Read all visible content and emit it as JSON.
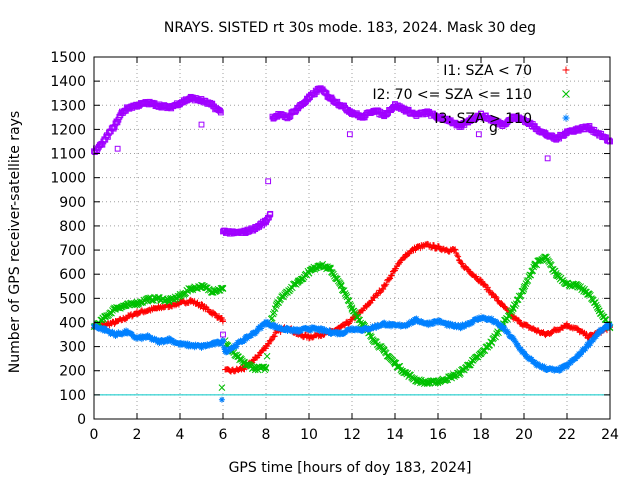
{
  "chart_data": {
    "type": "scatter",
    "title": "NRAYS. SISTED rt 30s mode. 183, 2024. Mask 30 deg",
    "xlabel": "GPS time [hours of doy 183, 2024]",
    "ylabel": "Number of GPS receiver-satellite rays",
    "xlim": [
      0,
      24
    ],
    "ylim": [
      0,
      1500
    ],
    "xticks": [
      0,
      2,
      4,
      6,
      8,
      10,
      12,
      14,
      16,
      18,
      20,
      22,
      24
    ],
    "yticks": [
      0,
      100,
      200,
      300,
      400,
      500,
      600,
      700,
      800,
      900,
      1000,
      1100,
      1200,
      1300,
      1400,
      1500
    ],
    "grid": true,
    "legend_position": "top-right",
    "reference_line": {
      "y": 100,
      "color": "#00c8c8"
    },
    "series": [
      {
        "name": "I1: SZA < 70",
        "marker": "+",
        "color": "#ff0000",
        "points": [
          [
            0,
            385
          ],
          [
            0.5,
            390
          ],
          [
            1,
            400
          ],
          [
            1.5,
            420
          ],
          [
            2,
            440
          ],
          [
            2.5,
            450
          ],
          [
            3,
            460
          ],
          [
            3.5,
            470
          ],
          [
            4,
            480
          ],
          [
            4.5,
            490
          ],
          [
            5,
            470
          ],
          [
            5.5,
            440
          ],
          [
            6,
            410
          ],
          [
            6.1,
            200
          ],
          [
            6.5,
            200
          ],
          [
            7,
            210
          ],
          [
            7.5,
            250
          ],
          [
            8,
            300
          ],
          [
            8.5,
            360
          ],
          [
            9,
            380
          ],
          [
            9.5,
            350
          ],
          [
            10,
            340
          ],
          [
            10.5,
            350
          ],
          [
            11,
            360
          ],
          [
            11.5,
            380
          ],
          [
            12,
            410
          ],
          [
            12.5,
            450
          ],
          [
            13,
            500
          ],
          [
            13.5,
            550
          ],
          [
            14,
            620
          ],
          [
            14.5,
            680
          ],
          [
            15,
            710
          ],
          [
            15.5,
            720
          ],
          [
            16,
            710
          ],
          [
            16.5,
            700
          ],
          [
            16.8,
            700
          ],
          [
            17,
            650
          ],
          [
            17.5,
            610
          ],
          [
            18,
            570
          ],
          [
            18.5,
            520
          ],
          [
            19,
            470
          ],
          [
            19.5,
            420
          ],
          [
            20,
            390
          ],
          [
            20.5,
            370
          ],
          [
            21,
            350
          ],
          [
            21.5,
            370
          ],
          [
            22,
            390
          ],
          [
            22.5,
            370
          ],
          [
            23,
            340
          ],
          [
            23.5,
            360
          ],
          [
            24,
            380
          ]
        ]
      },
      {
        "name": "I2: 70 <= SZA <= 110",
        "marker": "x",
        "color": "#00c000",
        "points": [
          [
            0,
            380
          ],
          [
            0.5,
            420
          ],
          [
            1,
            460
          ],
          [
            1.5,
            470
          ],
          [
            2,
            480
          ],
          [
            2.5,
            495
          ],
          [
            3,
            500
          ],
          [
            3.5,
            490
          ],
          [
            4,
            510
          ],
          [
            4.5,
            540
          ],
          [
            5,
            550
          ],
          [
            5.5,
            530
          ],
          [
            6,
            540
          ],
          [
            6.1,
            320
          ],
          [
            6.5,
            270
          ],
          [
            7,
            230
          ],
          [
            7.5,
            210
          ],
          [
            8,
            210
          ],
          [
            8.2,
            400
          ],
          [
            8.5,
            480
          ],
          [
            9,
            530
          ],
          [
            9.5,
            570
          ],
          [
            10,
            610
          ],
          [
            10.5,
            640
          ],
          [
            11,
            620
          ],
          [
            11.5,
            550
          ],
          [
            12,
            460
          ],
          [
            12.5,
            390
          ],
          [
            13,
            330
          ],
          [
            13.5,
            280
          ],
          [
            14,
            230
          ],
          [
            14.5,
            190
          ],
          [
            15,
            160
          ],
          [
            15.5,
            150
          ],
          [
            16,
            155
          ],
          [
            16.5,
            170
          ],
          [
            17,
            190
          ],
          [
            17.5,
            230
          ],
          [
            18,
            270
          ],
          [
            18.5,
            320
          ],
          [
            19,
            390
          ],
          [
            19.5,
            460
          ],
          [
            20,
            540
          ],
          [
            20.5,
            640
          ],
          [
            21,
            670
          ],
          [
            21.5,
            600
          ],
          [
            22,
            560
          ],
          [
            22.5,
            550
          ],
          [
            23,
            520
          ],
          [
            23.5,
            450
          ],
          [
            24,
            380
          ]
        ],
        "outliers": [
          [
            5.95,
            130
          ],
          [
            8.05,
            260
          ]
        ]
      },
      {
        "name": "I3: SZA > 110",
        "marker": "*",
        "color": "#0080ff",
        "points": [
          [
            0,
            385
          ],
          [
            0.5,
            370
          ],
          [
            1,
            350
          ],
          [
            1.5,
            360
          ],
          [
            2,
            335
          ],
          [
            2.5,
            340
          ],
          [
            3,
            320
          ],
          [
            3.5,
            330
          ],
          [
            4,
            310
          ],
          [
            4.5,
            305
          ],
          [
            5,
            300
          ],
          [
            5.5,
            310
          ],
          [
            6,
            320
          ],
          [
            6.1,
            280
          ],
          [
            6.5,
            300
          ],
          [
            7,
            330
          ],
          [
            7.5,
            360
          ],
          [
            8,
            400
          ],
          [
            8.5,
            380
          ],
          [
            9,
            370
          ],
          [
            9.5,
            365
          ],
          [
            10,
            375
          ],
          [
            10.5,
            370
          ],
          [
            11,
            360
          ],
          [
            11.5,
            355
          ],
          [
            12,
            375
          ],
          [
            12.5,
            370
          ],
          [
            13,
            380
          ],
          [
            13.5,
            395
          ],
          [
            14,
            385
          ],
          [
            14.5,
            390
          ],
          [
            15,
            410
          ],
          [
            15.5,
            395
          ],
          [
            16,
            405
          ],
          [
            16.5,
            390
          ],
          [
            17,
            380
          ],
          [
            17.5,
            400
          ],
          [
            18,
            420
          ],
          [
            18.5,
            410
          ],
          [
            19,
            380
          ],
          [
            19.5,
            330
          ],
          [
            20,
            270
          ],
          [
            20.5,
            230
          ],
          [
            21,
            210
          ],
          [
            21.5,
            200
          ],
          [
            22,
            220
          ],
          [
            22.5,
            260
          ],
          [
            23,
            310
          ],
          [
            23.5,
            360
          ],
          [
            24,
            390
          ]
        ],
        "outliers": [
          [
            5.95,
            80
          ]
        ]
      },
      {
        "name": "g",
        "marker": "square",
        "color": "#a000ff",
        "points": [
          [
            0,
            1110
          ],
          [
            0.3,
            1130
          ],
          [
            0.6,
            1170
          ],
          [
            1,
            1220
          ],
          [
            1.3,
            1270
          ],
          [
            1.6,
            1290
          ],
          [
            2,
            1300
          ],
          [
            2.5,
            1310
          ],
          [
            3,
            1300
          ],
          [
            3.5,
            1290
          ],
          [
            4,
            1310
          ],
          [
            4.5,
            1330
          ],
          [
            5,
            1320
          ],
          [
            5.5,
            1300
          ],
          [
            5.9,
            1270
          ],
          [
            6,
            780
          ],
          [
            6.5,
            770
          ],
          [
            7,
            775
          ],
          [
            7.5,
            790
          ],
          [
            8,
            820
          ],
          [
            8.2,
            850
          ],
          [
            8.3,
            1250
          ],
          [
            8.6,
            1260
          ],
          [
            9,
            1250
          ],
          [
            9.5,
            1290
          ],
          [
            10,
            1330
          ],
          [
            10.5,
            1370
          ],
          [
            11,
            1330
          ],
          [
            11.5,
            1300
          ],
          [
            12,
            1270
          ],
          [
            12.5,
            1250
          ],
          [
            13,
            1280
          ],
          [
            13.5,
            1260
          ],
          [
            14,
            1300
          ],
          [
            14.5,
            1280
          ],
          [
            15,
            1260
          ],
          [
            15.5,
            1270
          ],
          [
            16,
            1250
          ],
          [
            16.5,
            1240
          ],
          [
            17,
            1210
          ],
          [
            17.5,
            1240
          ],
          [
            18,
            1260
          ],
          [
            18.5,
            1240
          ],
          [
            19,
            1220
          ],
          [
            19.5,
            1250
          ],
          [
            20,
            1240
          ],
          [
            20.5,
            1210
          ],
          [
            21,
            1180
          ],
          [
            21.5,
            1160
          ],
          [
            22,
            1190
          ],
          [
            22.5,
            1200
          ],
          [
            23,
            1210
          ],
          [
            23.5,
            1180
          ],
          [
            24,
            1150
          ]
        ],
        "outliers": [
          [
            1.1,
            1120
          ],
          [
            5,
            1220
          ],
          [
            6,
            350
          ],
          [
            8.1,
            985
          ],
          [
            11.9,
            1180
          ],
          [
            17.9,
            1180
          ],
          [
            21.1,
            1080
          ]
        ]
      }
    ]
  }
}
